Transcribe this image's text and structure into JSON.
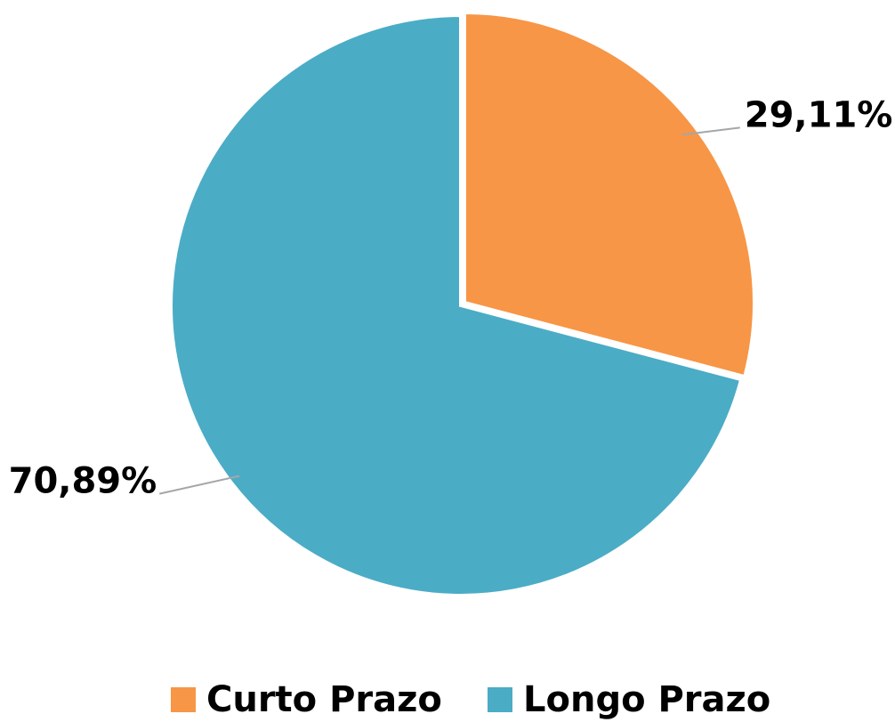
{
  "chart_data": {
    "type": "pie",
    "categories": [
      "Curto Prazo",
      "Longo Prazo"
    ],
    "values": [
      29.11,
      70.89
    ],
    "value_labels": [
      "29,11%",
      "70,89%"
    ],
    "colors": [
      "#F79646",
      "#4BACC6"
    ],
    "legend": "bottom"
  }
}
